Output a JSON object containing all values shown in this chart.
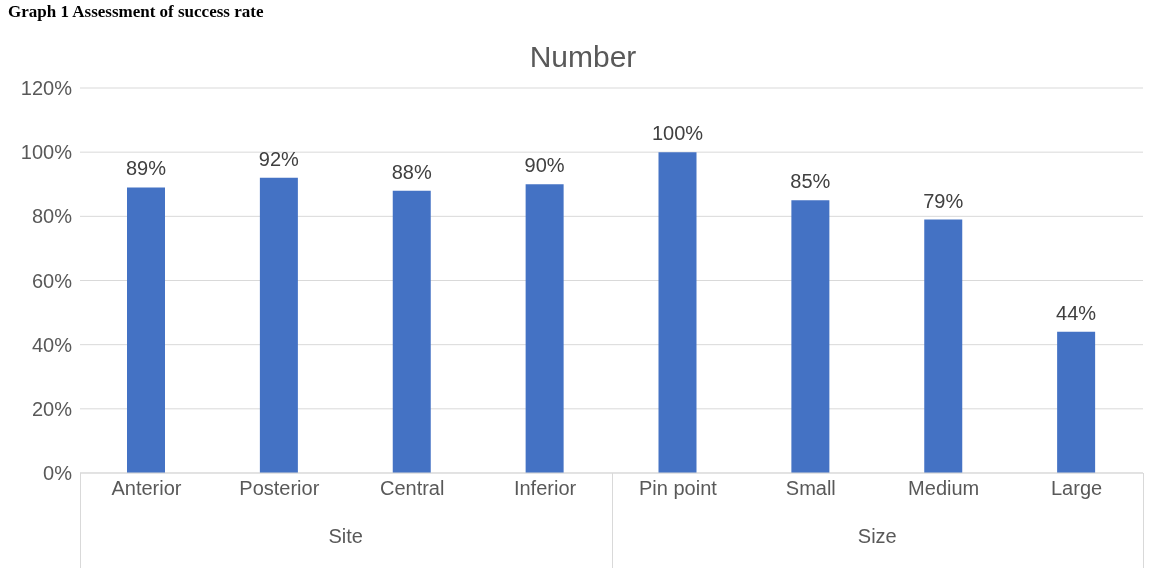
{
  "chart_data": {
    "type": "bar",
    "title": "Number",
    "categories": [
      "Anterior",
      "Posterior",
      "Central",
      "Inferior",
      "Pin point",
      "Small",
      "Medium",
      "Large"
    ],
    "values": [
      89,
      92,
      88,
      90,
      100,
      85,
      79,
      44
    ],
    "value_labels": [
      "89%",
      "92%",
      "88%",
      "90%",
      "100%",
      "85%",
      "79%",
      "44%"
    ],
    "color": "#4472c4",
    "ylim": [
      0,
      120
    ],
    "yticks": [
      {
        "value": 0,
        "label": "0%"
      },
      {
        "value": 20,
        "label": "20%"
      },
      {
        "value": 40,
        "label": "40%"
      },
      {
        "value": 60,
        "label": "60%"
      },
      {
        "value": 80,
        "label": "80%"
      },
      {
        "value": 100,
        "label": "100%"
      },
      {
        "value": 120,
        "label": "120%"
      }
    ],
    "grid": "y",
    "annotations": [
      "Graph 1 Assessment of success rate",
      "Site",
      "Size"
    ]
  }
}
